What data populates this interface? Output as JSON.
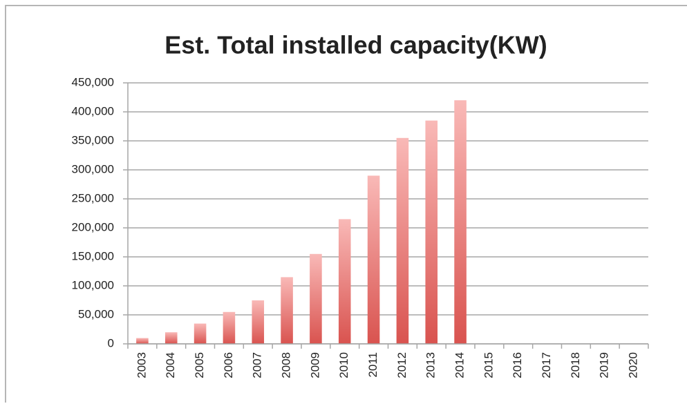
{
  "chart_data": {
    "type": "bar",
    "title": "Est. Total installed capacity(KW)",
    "categories": [
      "2003",
      "2004",
      "2005",
      "2006",
      "2007",
      "2008",
      "2009",
      "2010",
      "2011",
      "2012",
      "2013",
      "2014",
      "2015",
      "2016",
      "2017",
      "2018",
      "2019",
      "2020"
    ],
    "values": [
      10000,
      20000,
      35000,
      55000,
      75000,
      115000,
      155000,
      215000,
      290000,
      355000,
      385000,
      420000,
      null,
      null,
      null,
      null,
      null,
      null
    ],
    "color": "#d9534f",
    "ylim": [
      0,
      450000
    ],
    "yticks": [
      0,
      {
        "value": 50000,
        "label": "50,000"
      },
      {
        "value": 100000,
        "label": "100,000"
      },
      {
        "value": 150000,
        "label": "150,000"
      },
      {
        "value": 200000,
        "label": "200,000"
      },
      {
        "value": 250000,
        "label": "250,000"
      },
      {
        "value": 300000,
        "label": "300,000"
      },
      {
        "value": 350000,
        "label": "350,000"
      },
      {
        "value": 400000,
        "label": "400,000"
      },
      {
        "value": 450000,
        "label": "450,000"
      }
    ],
    "grid": true
  }
}
